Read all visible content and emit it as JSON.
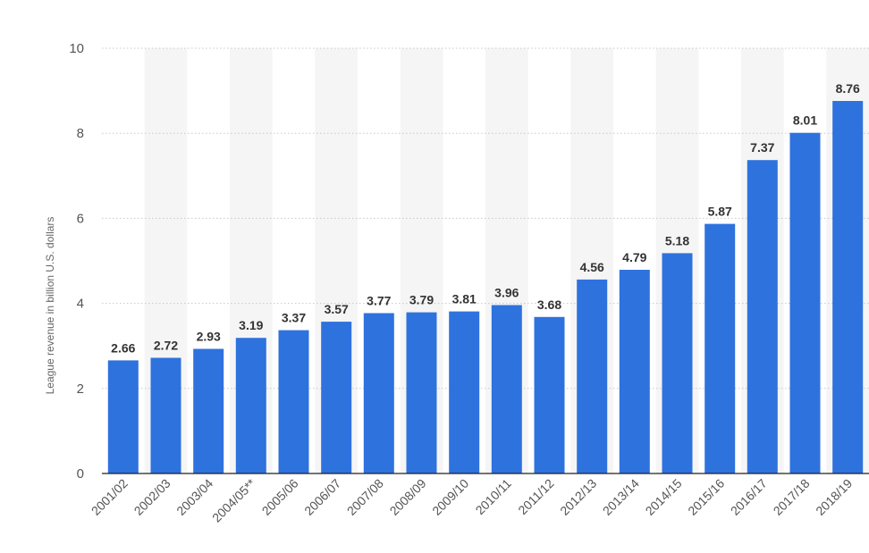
{
  "chart_data": {
    "type": "bar",
    "title": "",
    "xlabel": "",
    "ylabel": "League revenue in billion U.S. dollars",
    "ylim": [
      0,
      10
    ],
    "yticks": [
      0,
      2,
      4,
      6,
      8,
      10
    ],
    "grid": true,
    "categories": [
      "2001/02",
      "2002/03",
      "2003/04",
      "2004/05**",
      "2005/06",
      "2006/07",
      "2007/08",
      "2008/09",
      "2009/10",
      "2010/11",
      "2011/12",
      "2012/13",
      "2013/14",
      "2014/15",
      "2015/16",
      "2016/17",
      "2017/18",
      "2018/19"
    ],
    "values": [
      2.66,
      2.72,
      2.93,
      3.19,
      3.37,
      3.57,
      3.77,
      3.79,
      3.81,
      3.96,
      3.68,
      4.56,
      4.79,
      5.18,
      5.87,
      7.37,
      8.01,
      8.76
    ],
    "value_labels": [
      "2.66",
      "2.72",
      "2.93",
      "3.19",
      "3.37",
      "3.57",
      "3.77",
      "3.79",
      "3.81",
      "3.96",
      "3.68",
      "4.56",
      "4.79",
      "5.18",
      "5.87",
      "7.37",
      "8.01",
      "8.76"
    ],
    "bar_color": "#2e72de",
    "band_color": "#f5f5f5"
  }
}
